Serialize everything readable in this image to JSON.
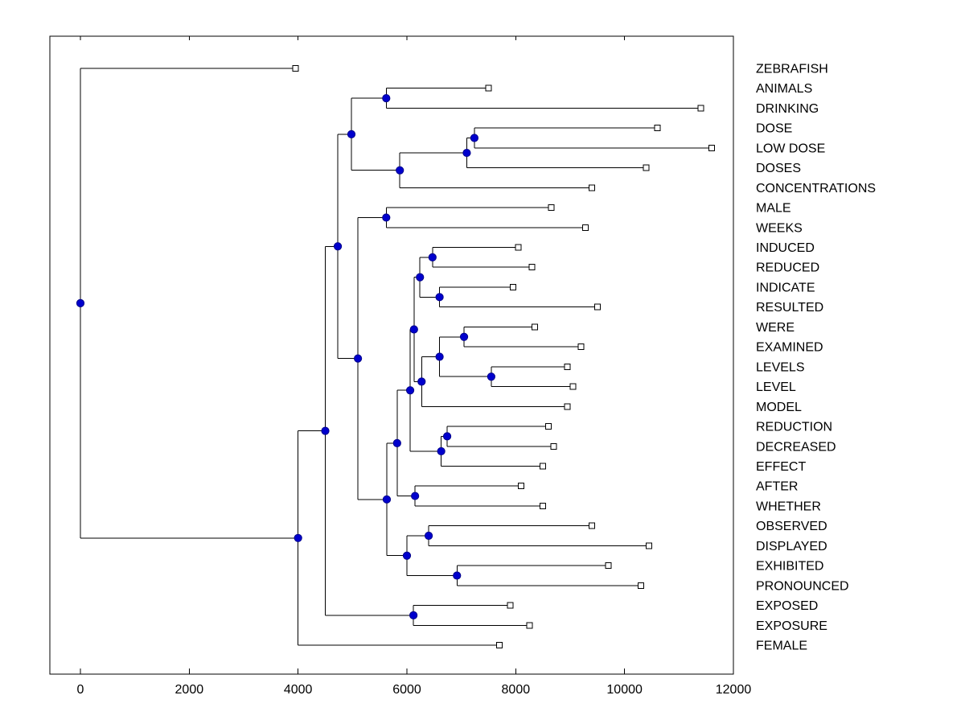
{
  "figure": {
    "background": "#ffffff"
  },
  "chart_data": {
    "type": "dendrogram",
    "title": "",
    "orientation": "horizontal-root-left",
    "xlabel": "",
    "ylabel": "",
    "x_range": [
      -560,
      12000
    ],
    "x_tick_values": [
      0,
      2000,
      4000,
      6000,
      8000,
      10000,
      12000
    ],
    "x_tick_labels": [
      "0",
      "2000",
      "4000",
      "6000",
      "8000",
      "10000",
      "12000"
    ],
    "grid": false,
    "legend": false,
    "styles": {
      "branch_color": "#000000",
      "internal_node_fill": "#0000CD",
      "internal_node_edge": "#00008B",
      "leaf_marker_fill": "#ffffff",
      "leaf_marker_edge": "#000000",
      "text_color": "#000000"
    },
    "leaves": [
      {
        "label": "ZEBRAFISH",
        "distance": 3950
      },
      {
        "label": "ANIMALS",
        "distance": 7500
      },
      {
        "label": "DRINKING",
        "distance": 11400
      },
      {
        "label": "DOSE",
        "distance": 10600
      },
      {
        "label": "LOW DOSE",
        "distance": 11600
      },
      {
        "label": "DOSES",
        "distance": 10400
      },
      {
        "label": "CONCENTRATIONS",
        "distance": 9400
      },
      {
        "label": "MALE",
        "distance": 8650
      },
      {
        "label": "WEEKS",
        "distance": 9280
      },
      {
        "label": "INDUCED",
        "distance": 8050
      },
      {
        "label": "REDUCED",
        "distance": 8300
      },
      {
        "label": "INDICATE",
        "distance": 7950
      },
      {
        "label": "RESULTED",
        "distance": 9500
      },
      {
        "label": "WERE",
        "distance": 8350
      },
      {
        "label": "EXAMINED",
        "distance": 9200
      },
      {
        "label": "LEVELS",
        "distance": 8950
      },
      {
        "label": "LEVEL",
        "distance": 9050
      },
      {
        "label": "MODEL",
        "distance": 8950
      },
      {
        "label": "REDUCTION",
        "distance": 8600
      },
      {
        "label": "DECREASED",
        "distance": 8700
      },
      {
        "label": "EFFECT",
        "distance": 8500
      },
      {
        "label": "AFTER",
        "distance": 8100
      },
      {
        "label": "WHETHER",
        "distance": 8500
      },
      {
        "label": "OBSERVED",
        "distance": 9400
      },
      {
        "label": "DISPLAYED",
        "distance": 10450
      },
      {
        "label": "EXHIBITED",
        "distance": 9700
      },
      {
        "label": "PRONOUNCED",
        "distance": 10300
      },
      {
        "label": "EXPOSED",
        "distance": 7900
      },
      {
        "label": "EXPOSURE",
        "distance": 8250
      },
      {
        "label": "FEMALE",
        "distance": 7700
      }
    ],
    "tree": {
      "d": 0,
      "c": [
        {
          "d": 3950,
          "label": "ZEBRAFISH"
        },
        {
          "d": 4000,
          "c": [
            {
              "d": 4500,
              "c": [
                {
                  "d": 4730,
                  "c": [
                    {
                      "d": 4980,
                      "c": [
                        {
                          "d": 5620,
                          "c": [
                            {
                              "d": 7500,
                              "label": "ANIMALS"
                            },
                            {
                              "d": 11400,
                              "label": "DRINKING"
                            }
                          ]
                        },
                        {
                          "d": 5870,
                          "c": [
                            {
                              "d": 7100,
                              "c": [
                                {
                                  "d": 7240,
                                  "c": [
                                    {
                                      "d": 10600,
                                      "label": "DOSE"
                                    },
                                    {
                                      "d": 11600,
                                      "label": "LOW DOSE"
                                    }
                                  ]
                                },
                                {
                                  "d": 10400,
                                  "label": "DOSES"
                                }
                              ]
                            },
                            {
                              "d": 9400,
                              "label": "CONCENTRATIONS"
                            }
                          ]
                        }
                      ]
                    },
                    {
                      "d": 5100,
                      "c": [
                        {
                          "d": 5620,
                          "c": [
                            {
                              "d": 8650,
                              "label": "MALE"
                            },
                            {
                              "d": 9280,
                              "label": "WEEKS"
                            }
                          ]
                        },
                        {
                          "d": 5630,
                          "c": [
                            {
                              "d": 5820,
                              "c": [
                                {
                                  "d": 6060,
                                  "c": [
                                    {
                                      "d": 6130,
                                      "c": [
                                        {
                                          "d": 6240,
                                          "c": [
                                            {
                                              "d": 6470,
                                              "c": [
                                                {
                                                  "d": 8050,
                                                  "label": "INDUCED"
                                                },
                                                {
                                                  "d": 8300,
                                                  "label": "REDUCED"
                                                }
                                              ]
                                            },
                                            {
                                              "d": 6600,
                                              "c": [
                                                {
                                                  "d": 7950,
                                                  "label": "INDICATE"
                                                },
                                                {
                                                  "d": 9500,
                                                  "label": "RESULTED"
                                                }
                                              ]
                                            }
                                          ]
                                        },
                                        {
                                          "d": 6270,
                                          "c": [
                                            {
                                              "d": 6600,
                                              "c": [
                                                {
                                                  "d": 7050,
                                                  "c": [
                                                    {
                                                      "d": 8350,
                                                      "label": "WERE"
                                                    },
                                                    {
                                                      "d": 9200,
                                                      "label": "EXAMINED"
                                                    }
                                                  ]
                                                },
                                                {
                                                  "d": 7550,
                                                  "c": [
                                                    {
                                                      "d": 8950,
                                                      "label": "LEVELS"
                                                    },
                                                    {
                                                      "d": 9050,
                                                      "label": "LEVEL"
                                                    }
                                                  ]
                                                }
                                              ]
                                            },
                                            {
                                              "d": 8950,
                                              "label": "MODEL"
                                            }
                                          ]
                                        }
                                      ]
                                    },
                                    {
                                      "d": 6630,
                                      "c": [
                                        {
                                          "d": 6740,
                                          "c": [
                                            {
                                              "d": 8600,
                                              "label": "REDUCTION"
                                            },
                                            {
                                              "d": 8700,
                                              "label": "DECREASED"
                                            }
                                          ]
                                        },
                                        {
                                          "d": 8500,
                                          "label": "EFFECT"
                                        }
                                      ]
                                    }
                                  ]
                                },
                                {
                                  "d": 6150,
                                  "c": [
                                    {
                                      "d": 8100,
                                      "label": "AFTER"
                                    },
                                    {
                                      "d": 8500,
                                      "label": "WHETHER"
                                    }
                                  ]
                                }
                              ]
                            },
                            {
                              "d": 6000,
                              "c": [
                                {
                                  "d": 6400,
                                  "c": [
                                    {
                                      "d": 9400,
                                      "label": "OBSERVED"
                                    },
                                    {
                                      "d": 10450,
                                      "label": "DISPLAYED"
                                    }
                                  ]
                                },
                                {
                                  "d": 6920,
                                  "c": [
                                    {
                                      "d": 9700,
                                      "label": "EXHIBITED"
                                    },
                                    {
                                      "d": 10300,
                                      "label": "PRONOUNCED"
                                    }
                                  ]
                                }
                              ]
                            }
                          ]
                        }
                      ]
                    }
                  ]
                },
                {
                  "d": 6120,
                  "c": [
                    {
                      "d": 7900,
                      "label": "EXPOSED"
                    },
                    {
                      "d": 8250,
                      "label": "EXPOSURE"
                    }
                  ]
                }
              ]
            },
            {
              "d": 7700,
              "label": "FEMALE"
            }
          ]
        }
      ]
    }
  }
}
